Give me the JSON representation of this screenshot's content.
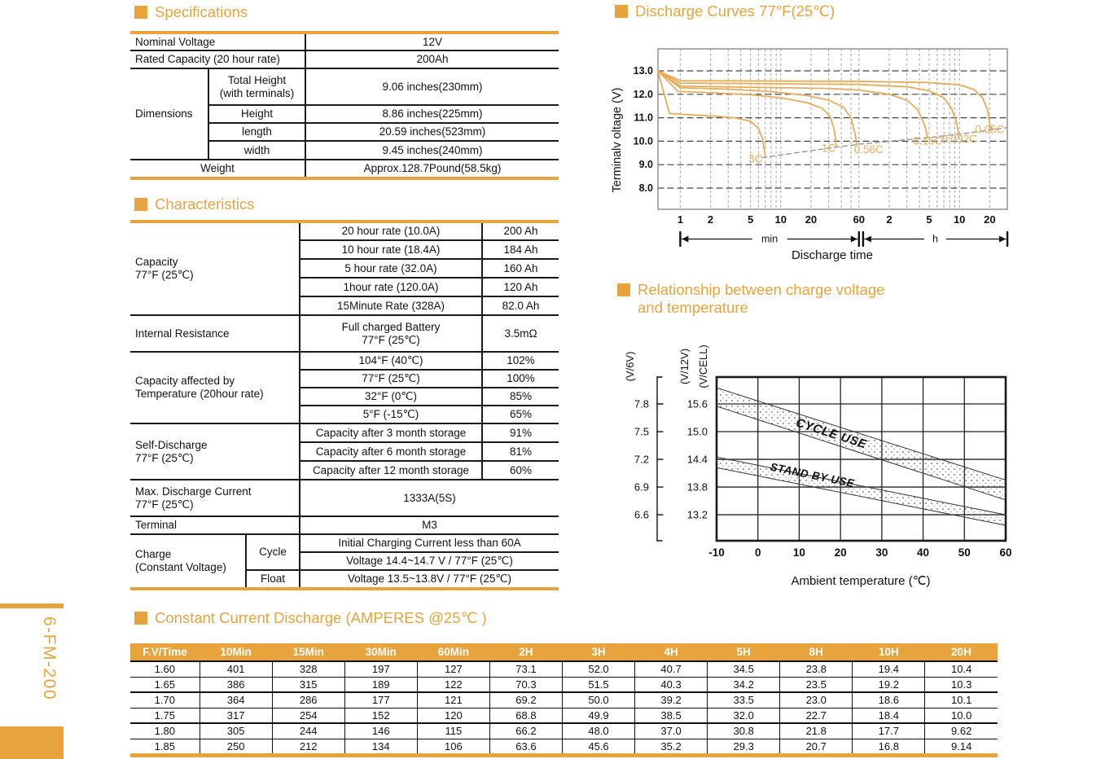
{
  "colors": {
    "accent": "#E8A33C",
    "curve": "#E9AC56",
    "table_line": "#1a1a1a",
    "header_text": "#ffffff"
  },
  "sidebar": {
    "model": "6-FM-200"
  },
  "specifications": {
    "title": "Specifications",
    "nominal_voltage": {
      "label": "Nominal Voltage",
      "value": "12V"
    },
    "rated_capacity": {
      "label": "Rated Capacity (20 hour rate)",
      "value": "200Ah"
    },
    "dimensions": {
      "label": "Dimensions",
      "rows": [
        {
          "name": "Total Height\n(with terminals)",
          "value": "9.06 inches(230mm)"
        },
        {
          "name": "Height",
          "value": "8.86 inches(225mm)"
        },
        {
          "name": "length",
          "value": "20.59 inches(523mm)"
        },
        {
          "name": "width",
          "value": "9.45 inches(240mm)"
        }
      ]
    },
    "weight": {
      "label": "Weight",
      "value": "Approx.128.7Pound(58.5kg)"
    }
  },
  "characteristics": {
    "title": "Characteristics",
    "capacity": {
      "label": "Capacity\n77°F (25℃)",
      "rows": [
        {
          "name": "20 hour rate (10.0A)",
          "value": "200 Ah"
        },
        {
          "name": "10 hour rate (18.4A)",
          "value": "184 Ah"
        },
        {
          "name": "5 hour rate (32.0A)",
          "value": "160 Ah"
        },
        {
          "name": "1hour rate (120.0A)",
          "value": "120 Ah"
        },
        {
          "name": "15Minute Rate (328A)",
          "value": "82.0 Ah"
        }
      ]
    },
    "internal_resistance": {
      "label": "Internal Resistance",
      "condition": "Full charged Battery\n77°F (25℃)",
      "value": "3.5mΩ"
    },
    "capacity_temperature": {
      "label": "Capacity affected by\nTemperature (20hour rate)",
      "rows": [
        {
          "name": "104°F (40℃)",
          "value": "102%"
        },
        {
          "name": "77°F (25℃)",
          "value": "100%"
        },
        {
          "name": "32°F (0℃)",
          "value": "85%"
        },
        {
          "name": "5°F (-15℃)",
          "value": "65%"
        }
      ]
    },
    "self_discharge": {
      "label": "Self-Discharge\n77°F (25℃)",
      "rows": [
        {
          "name": "Capacity after 3 month storage",
          "value": "91%"
        },
        {
          "name": "Capacity after 6 month storage",
          "value": "81%"
        },
        {
          "name": "Capacity after 12 month storage",
          "value": "60%"
        }
      ]
    },
    "max_discharge_current": {
      "label": "Max. Discharge Current\n77°F (25℃)",
      "value": "1333A(5S)"
    },
    "terminal": {
      "label": "Terminal",
      "value": "M3"
    },
    "charge": {
      "label": "Charge\n(Constant Voltage)",
      "cycle_label": "Cycle",
      "cycle_rows": [
        "Initial Charging Current less than 60A",
        "Voltage 14.4~14.7 V / 77°F (25℃)"
      ],
      "float_label": "Float",
      "float_row": "Voltage 13.5~13.8V / 77°F (25℃)"
    }
  },
  "chart_data": [
    {
      "id": "discharge-curves",
      "type": "line",
      "title": "Discharge Curves 77°F(25℃)",
      "xlabel": "Discharge time",
      "ylabel": "Terminalv oltage (V)",
      "x_scale": "log",
      "x_unit": "minutes",
      "xlim": [
        0.6,
        1800
      ],
      "ylim": [
        7.1,
        13.9
      ],
      "y_ticks": [
        13.0,
        12.0,
        11.0,
        10.0,
        9.0,
        8.0
      ],
      "x_ticks": [
        {
          "t": 1,
          "label": "1"
        },
        {
          "t": 2,
          "label": "2"
        },
        {
          "t": 5,
          "label": "5"
        },
        {
          "t": 10,
          "label": "10"
        },
        {
          "t": 20,
          "label": "20"
        },
        {
          "t": 60,
          "label": "60"
        },
        {
          "t": 120,
          "label": "2"
        },
        {
          "t": 300,
          "label": "5"
        },
        {
          "t": 600,
          "label": "10"
        },
        {
          "t": 1200,
          "label": "20"
        }
      ],
      "x_minor_grid": [
        1,
        2,
        3,
        4,
        5,
        6,
        7,
        8,
        9,
        10,
        20,
        30,
        40,
        50,
        60,
        120,
        180,
        240,
        300,
        360,
        420,
        480,
        540,
        600,
        1200
      ],
      "unit_spans": [
        {
          "label": "min",
          "from": 1,
          "to": 60
        },
        {
          "label": "h",
          "from": 66,
          "to": 1800
        }
      ],
      "series": [
        {
          "name": "3C",
          "points": [
            [
              0.6,
              13.0
            ],
            [
              0.78,
              11.18
            ],
            [
              1,
              11.15
            ],
            [
              2,
              11.08
            ],
            [
              3.5,
              11.0
            ],
            [
              5,
              10.85
            ],
            [
              6,
              10.55
            ],
            [
              6.6,
              10.1
            ],
            [
              7,
              9.4
            ]
          ]
        },
        {
          "name": "1C",
          "points": [
            [
              0.6,
              13.0
            ],
            [
              0.95,
              12.12
            ],
            [
              2,
              12.07
            ],
            [
              5,
              11.98
            ],
            [
              10,
              11.85
            ],
            [
              18,
              11.65
            ],
            [
              26,
              11.4
            ],
            [
              31,
              11.05
            ],
            [
              34,
              10.5
            ],
            [
              36,
              9.75
            ]
          ]
        },
        {
          "name": "0.56C",
          "points": [
            [
              0.6,
              13.0
            ],
            [
              1,
              12.28
            ],
            [
              3,
              12.22
            ],
            [
              8,
              12.12
            ],
            [
              18,
              11.95
            ],
            [
              30,
              11.75
            ],
            [
              42,
              11.45
            ],
            [
              50,
              11.0
            ],
            [
              55,
              10.3
            ],
            [
              57,
              9.85
            ]
          ]
        },
        {
          "name": "0.16C",
          "points": [
            [
              0.6,
              13.0
            ],
            [
              1,
              12.35
            ],
            [
              5,
              12.3
            ],
            [
              30,
              12.25
            ],
            [
              60,
              12.18
            ],
            [
              120,
              12.0
            ],
            [
              180,
              11.75
            ],
            [
              230,
              11.35
            ],
            [
              270,
              10.7
            ],
            [
              290,
              10.15
            ]
          ]
        },
        {
          "name": "0.092C",
          "points": [
            [
              0.6,
              13.0
            ],
            [
              1,
              12.48
            ],
            [
              60,
              12.42
            ],
            [
              180,
              12.32
            ],
            [
              300,
              12.15
            ],
            [
              420,
              11.85
            ],
            [
              500,
              11.4
            ],
            [
              560,
              10.8
            ],
            [
              590,
              10.3
            ]
          ]
        },
        {
          "name": "0.05C",
          "points": [
            [
              0.6,
              13.0
            ],
            [
              1,
              12.58
            ],
            [
              60,
              12.55
            ],
            [
              300,
              12.5
            ],
            [
              600,
              12.4
            ],
            [
              840,
              12.2
            ],
            [
              1020,
              11.85
            ],
            [
              1140,
              11.35
            ],
            [
              1220,
              10.55
            ]
          ]
        }
      ],
      "cutoff_line": [
        [
          6.5,
          9.3
        ],
        [
          36,
          9.75
        ],
        [
          60,
          9.87
        ],
        [
          300,
          10.16
        ],
        [
          600,
          10.3
        ],
        [
          1750,
          10.57
        ]
      ],
      "curve_labels": [
        {
          "text": "3C",
          "t": 5.6,
          "v": 9.1
        },
        {
          "text": "1C",
          "t": 30,
          "v": 9.55
        },
        {
          "text": "0.56C",
          "t": 75,
          "v": 9.5
        },
        {
          "text": "0.16C",
          "t": 290,
          "v": 9.85
        },
        {
          "text": "0.092C",
          "t": 600,
          "v": 9.95
        },
        {
          "text": "0.05C",
          "t": 1200,
          "v": 10.35
        }
      ]
    },
    {
      "id": "charge-voltage-temperature",
      "type": "band",
      "title": "Relationship between charge voltage\nand temperature",
      "xlabel": "Ambient temperature (℃)",
      "y_left_label": "(V/6V)",
      "y_left_ticks": [
        7.8,
        7.5,
        7.2,
        6.9,
        6.6
      ],
      "y_right_labels": [
        "(V/12V)",
        "(V/CELL)"
      ],
      "y_ticks_12v": [
        15.6,
        15.0,
        14.4,
        13.8,
        13.2
      ],
      "x_ticks": [
        -10,
        0,
        10,
        20,
        30,
        40,
        50,
        60
      ],
      "xlim": [
        -10,
        60
      ],
      "ylim_12v": [
        12.64,
        16.18
      ],
      "bands": [
        {
          "name": "CYCLE USE",
          "upper": [
            [
              -10,
              15.95
            ],
            [
              60,
              13.95
            ]
          ],
          "lower": [
            [
              -10,
              15.55
            ],
            [
              60,
              13.52
            ]
          ],
          "label_x": 17.5,
          "label_v": 14.88,
          "label_angle": 18
        },
        {
          "name": "STAND BY USE",
          "upper": [
            [
              -10,
              14.45
            ],
            [
              60,
              13.2
            ]
          ],
          "lower": [
            [
              -10,
              14.22
            ],
            [
              60,
              12.97
            ]
          ],
          "label_x": 13,
          "label_v": 13.98,
          "label_angle": 11.5
        }
      ]
    }
  ],
  "constant_current": {
    "title": "Constant Current Discharge  (AMPERES @25℃ )",
    "headers": [
      "F.V/Time",
      "10Min",
      "15Min",
      "30Min",
      "60Min",
      "2H",
      "3H",
      "4H",
      "5H",
      "8H",
      "10H",
      "20H"
    ],
    "rows": [
      [
        "1.60",
        "401",
        "328",
        "197",
        "127",
        "73.1",
        "52.0",
        "40.7",
        "34.5",
        "23.8",
        "19.4",
        "10.4"
      ],
      [
        "1.65",
        "386",
        "315",
        "189",
        "122",
        "70.3",
        "51.5",
        "40.3",
        "34.2",
        "23.5",
        "19.2",
        "10.3"
      ],
      [
        "1.70",
        "364",
        "286",
        "177",
        "121",
        "69.2",
        "50.0",
        "39.2",
        "33.5",
        "23.0",
        "18.6",
        "10.1"
      ],
      [
        "1.75",
        "317",
        "254",
        "152",
        "120",
        "68.8",
        "49.9",
        "38.5",
        "32.0",
        "22.7",
        "18.4",
        "10.0"
      ],
      [
        "1.80",
        "305",
        "244",
        "146",
        "115",
        "66.2",
        "48.0",
        "37.0",
        "30.8",
        "21.8",
        "17.7",
        "9.62"
      ],
      [
        "1.85",
        "250",
        "212",
        "134",
        "106",
        "63.6",
        "45.6",
        "35.2",
        "29.3",
        "20.7",
        "16.8",
        "9.14"
      ]
    ]
  }
}
